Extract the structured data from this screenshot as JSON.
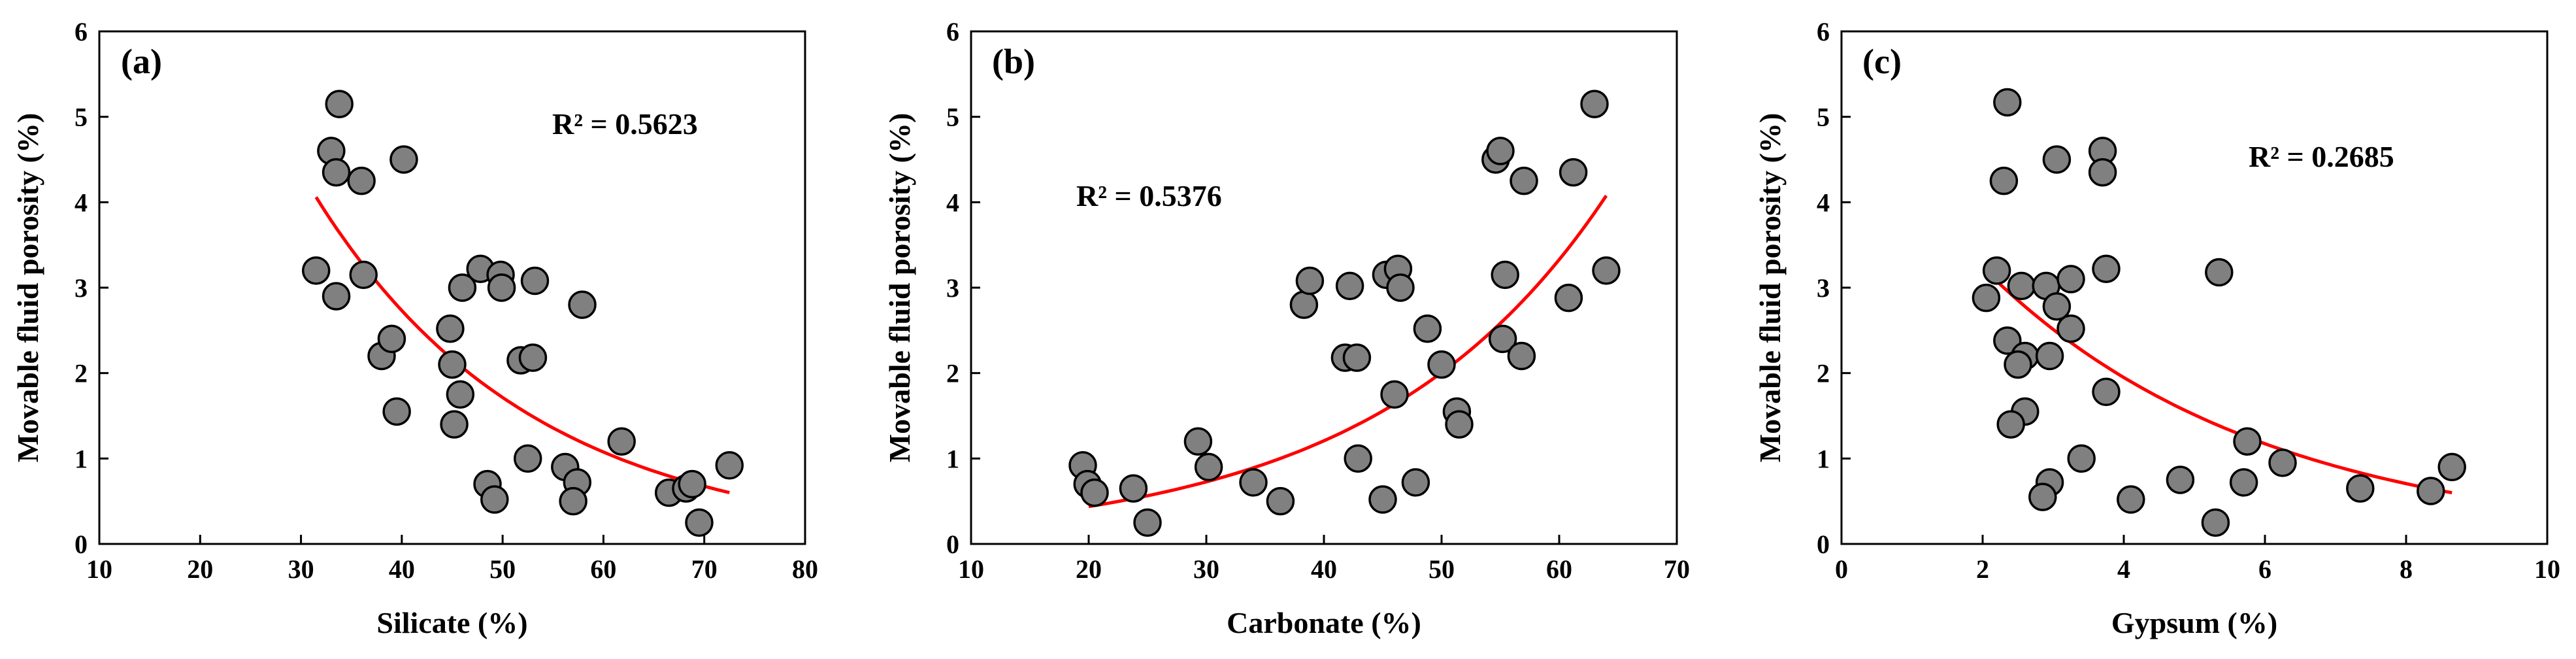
{
  "colors": {
    "marker_fill": "#808080",
    "marker_edge": "#000000",
    "trendline": "#ff0000"
  },
  "chart_data": [
    {
      "type": "scatter",
      "panel_label": "(a)",
      "xlabel": "Silicate (%)",
      "ylabel": "Movable fluid porosity (%)",
      "xlim": [
        10,
        80
      ],
      "ylim": [
        0,
        6
      ],
      "xticks": [
        "10",
        "20",
        "30",
        "40",
        "50",
        "60",
        "70",
        "80"
      ],
      "yticks": [
        "0",
        "1",
        "2",
        "3",
        "4",
        "5",
        "6"
      ],
      "r2_text": "R² = 0.5623",
      "trend": {
        "type": "exponential",
        "a": 17.62,
        "b": -0.0466,
        "x_range": [
          31.5,
          72.5
        ]
      },
      "points": [
        [
          33.8,
          5.15
        ],
        [
          33.0,
          4.6
        ],
        [
          33.5,
          4.35
        ],
        [
          36.0,
          4.25
        ],
        [
          40.2,
          4.5
        ],
        [
          36.2,
          3.15
        ],
        [
          31.5,
          3.2
        ],
        [
          33.5,
          2.9
        ],
        [
          38.0,
          2.2
        ],
        [
          39.0,
          2.4
        ],
        [
          39.5,
          1.55
        ],
        [
          44.8,
          2.52
        ],
        [
          45.0,
          2.1
        ],
        [
          46.0,
          3.0
        ],
        [
          45.8,
          1.75
        ],
        [
          45.2,
          1.4
        ],
        [
          47.8,
          3.22
        ],
        [
          49.8,
          3.15
        ],
        [
          49.9,
          3.0
        ],
        [
          53.2,
          3.08
        ],
        [
          57.9,
          2.8
        ],
        [
          51.8,
          2.15
        ],
        [
          53.0,
          2.18
        ],
        [
          48.5,
          0.7
        ],
        [
          49.2,
          0.52
        ],
        [
          52.5,
          1.0
        ],
        [
          56.2,
          0.9
        ],
        [
          57.4,
          0.72
        ],
        [
          57.0,
          0.5
        ],
        [
          61.8,
          1.2
        ],
        [
          66.5,
          0.6
        ],
        [
          68.2,
          0.65
        ],
        [
          68.8,
          0.7
        ],
        [
          69.5,
          0.25
        ],
        [
          72.5,
          0.92
        ]
      ]
    },
    {
      "type": "scatter",
      "panel_label": "(b)",
      "xlabel": "Carbonate (%)",
      "ylabel": "Movable fluid porosity (%)",
      "xlim": [
        10,
        70
      ],
      "ylim": [
        0,
        6
      ],
      "xticks": [
        "10",
        "20",
        "30",
        "40",
        "50",
        "60",
        "70"
      ],
      "yticks": [
        "0",
        "1",
        "2",
        "3",
        "4",
        "5",
        "6"
      ],
      "r2_text": "R² = 0.5376",
      "trend": {
        "type": "exponential",
        "a": 0.1589,
        "b": 0.0507,
        "x_range": [
          20.0,
          64.0
        ]
      },
      "points": [
        [
          19.5,
          0.92
        ],
        [
          19.9,
          0.7
        ],
        [
          20.5,
          0.6
        ],
        [
          23.8,
          0.65
        ],
        [
          25.0,
          0.25
        ],
        [
          29.3,
          1.2
        ],
        [
          30.2,
          0.9
        ],
        [
          34.0,
          0.72
        ],
        [
          36.3,
          0.5
        ],
        [
          38.3,
          2.8
        ],
        [
          38.8,
          3.08
        ],
        [
          41.8,
          2.18
        ],
        [
          42.2,
          3.02
        ],
        [
          42.8,
          2.18
        ],
        [
          42.9,
          1.0
        ],
        [
          45.0,
          0.52
        ],
        [
          45.3,
          3.15
        ],
        [
          46.3,
          3.22
        ],
        [
          46.5,
          3.0
        ],
        [
          46.0,
          1.75
        ],
        [
          47.8,
          0.72
        ],
        [
          48.8,
          2.52
        ],
        [
          50.0,
          2.1
        ],
        [
          51.3,
          1.55
        ],
        [
          51.5,
          1.4
        ],
        [
          54.6,
          4.5
        ],
        [
          55.0,
          4.6
        ],
        [
          55.2,
          2.4
        ],
        [
          55.4,
          3.15
        ],
        [
          56.8,
          2.2
        ],
        [
          57.0,
          4.25
        ],
        [
          60.8,
          2.88
        ],
        [
          61.2,
          4.35
        ],
        [
          63.0,
          5.15
        ],
        [
          64.0,
          3.2
        ]
      ]
    },
    {
      "type": "scatter",
      "panel_label": "(c)",
      "xlabel": "Gypsum (%)",
      "ylabel": "Movable fluid porosity (%)",
      "xlim": [
        0,
        10
      ],
      "ylim": [
        0,
        6
      ],
      "xticks": [
        "0",
        "2",
        "4",
        "6",
        "8",
        "10"
      ],
      "yticks": [
        "0",
        "1",
        "2",
        "3",
        "4",
        "5",
        "6"
      ],
      "r2_text": "R² = 0.2685",
      "trend": {
        "type": "exponential",
        "a": 5.376,
        "b": -0.2537,
        "x_range": [
          2.05,
          8.65
        ]
      },
      "points": [
        [
          2.35,
          5.17
        ],
        [
          2.3,
          4.25
        ],
        [
          3.05,
          4.5
        ],
        [
          3.7,
          4.6
        ],
        [
          3.7,
          4.35
        ],
        [
          2.2,
          3.2
        ],
        [
          2.05,
          2.88
        ],
        [
          2.55,
          3.02
        ],
        [
          2.9,
          3.02
        ],
        [
          3.05,
          2.78
        ],
        [
          3.25,
          3.1
        ],
        [
          3.75,
          3.22
        ],
        [
          5.35,
          3.18
        ],
        [
          2.35,
          2.38
        ],
        [
          2.6,
          2.2
        ],
        [
          2.5,
          2.1
        ],
        [
          2.95,
          2.2
        ],
        [
          3.25,
          2.52
        ],
        [
          2.6,
          1.55
        ],
        [
          3.75,
          1.78
        ],
        [
          2.4,
          1.4
        ],
        [
          3.4,
          1.0
        ],
        [
          2.95,
          0.72
        ],
        [
          2.85,
          0.55
        ],
        [
          4.1,
          0.52
        ],
        [
          4.8,
          0.75
        ],
        [
          5.3,
          0.25
        ],
        [
          5.75,
          1.2
        ],
        [
          5.7,
          0.72
        ],
        [
          6.25,
          0.95
        ],
        [
          7.35,
          0.65
        ],
        [
          8.35,
          0.62
        ],
        [
          8.65,
          0.9
        ]
      ]
    }
  ]
}
